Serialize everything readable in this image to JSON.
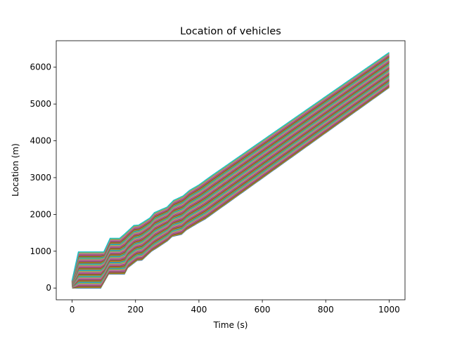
{
  "chart_data": {
    "type": "line",
    "title": "Location of vehicles",
    "xlabel": "Time (s)",
    "ylabel": "Location (m)",
    "xlim": [
      -50,
      1050
    ],
    "ylim": [
      -320,
      6720
    ],
    "xticks": [
      0,
      200,
      400,
      600,
      800,
      1000
    ],
    "yticks": [
      0,
      1000,
      2000,
      3000,
      4000,
      5000,
      6000
    ],
    "xtick_labels": [
      "0",
      "200",
      "400",
      "600",
      "800",
      "1000"
    ],
    "ytick_labels": [
      "0",
      "1000",
      "2000",
      "3000",
      "4000",
      "5000",
      "6000"
    ],
    "grid": false,
    "legend": "none",
    "series_colors": [
      "#1f77b4",
      "#ff7f0e",
      "#2ca02c",
      "#d62728",
      "#9467bd",
      "#8c564b",
      "#e377c2",
      "#7f7f7f",
      "#bcbd22",
      "#17becf"
    ],
    "series_description": "Dense band of vehicle trajectories; lowest trajectory shown as 'lowest', highest as 'highest', intermediate vehicles interpolated",
    "series": [
      {
        "role": "lowest",
        "x": [
          0,
          90,
          115,
          165,
          175,
          205,
          220,
          250,
          265,
          300,
          315,
          345,
          360,
          395,
          420,
          1000
        ],
        "y": [
          0,
          0,
          380,
          380,
          550,
          750,
          760,
          1000,
          1080,
          1280,
          1400,
          1460,
          1580,
          1760,
          1880,
          5450
        ]
      },
      {
        "role": "highest",
        "x": [
          0,
          20,
          100,
          120,
          150,
          165,
          195,
          210,
          245,
          260,
          300,
          320,
          350,
          370,
          400,
          440,
          1000
        ],
        "y": [
          200,
          980,
          980,
          1350,
          1350,
          1460,
          1700,
          1710,
          1900,
          2050,
          2200,
          2380,
          2500,
          2650,
          2800,
          3050,
          6400
        ]
      }
    ]
  }
}
